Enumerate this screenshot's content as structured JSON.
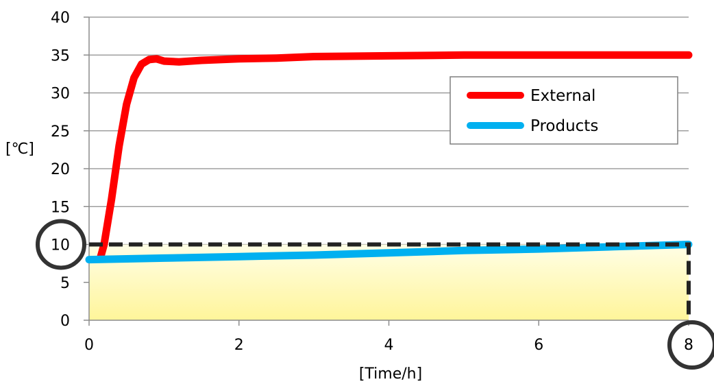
{
  "chart_data": {
    "type": "line",
    "title": "",
    "xlabel": "[Time/h]",
    "ylabel": "[℃]",
    "xlim": [
      0,
      8
    ],
    "ylim": [
      0,
      40
    ],
    "x_ticks": [
      "0",
      "2",
      "4",
      "6",
      "8"
    ],
    "y_ticks": [
      "0",
      "5",
      "10",
      "15",
      "20",
      "25",
      "30",
      "35",
      "40"
    ],
    "grid": "horizontal",
    "legend": "upper-right",
    "series": [
      {
        "name": "External",
        "color": "#ff0000",
        "x": [
          0.15,
          0.2,
          0.3,
          0.4,
          0.5,
          0.6,
          0.7,
          0.8,
          0.9,
          1.0,
          1.2,
          1.5,
          2.0,
          2.5,
          3.0,
          4.0,
          5.0,
          6.0,
          7.0,
          8.0
        ],
        "y": [
          8.2,
          10.0,
          16.0,
          23.0,
          28.5,
          32.0,
          33.8,
          34.4,
          34.5,
          34.2,
          34.1,
          34.3,
          34.5,
          34.6,
          34.8,
          34.9,
          35.0,
          35.0,
          35.0,
          35.0
        ]
      },
      {
        "name": "Products",
        "color": "#00b0f0",
        "x": [
          0,
          1,
          2,
          3,
          4,
          5,
          6,
          7,
          8
        ],
        "y": [
          8.0,
          8.2,
          8.4,
          8.6,
          8.9,
          9.2,
          9.4,
          9.7,
          10.0
        ]
      }
    ],
    "annotations": {
      "threshold_y": 10,
      "threshold_x": 8,
      "highlight_y_label": "10",
      "highlight_x_label": "8",
      "fill_colors": [
        "#fffee6",
        "#fff59a"
      ],
      "line_color": "#222222"
    }
  }
}
